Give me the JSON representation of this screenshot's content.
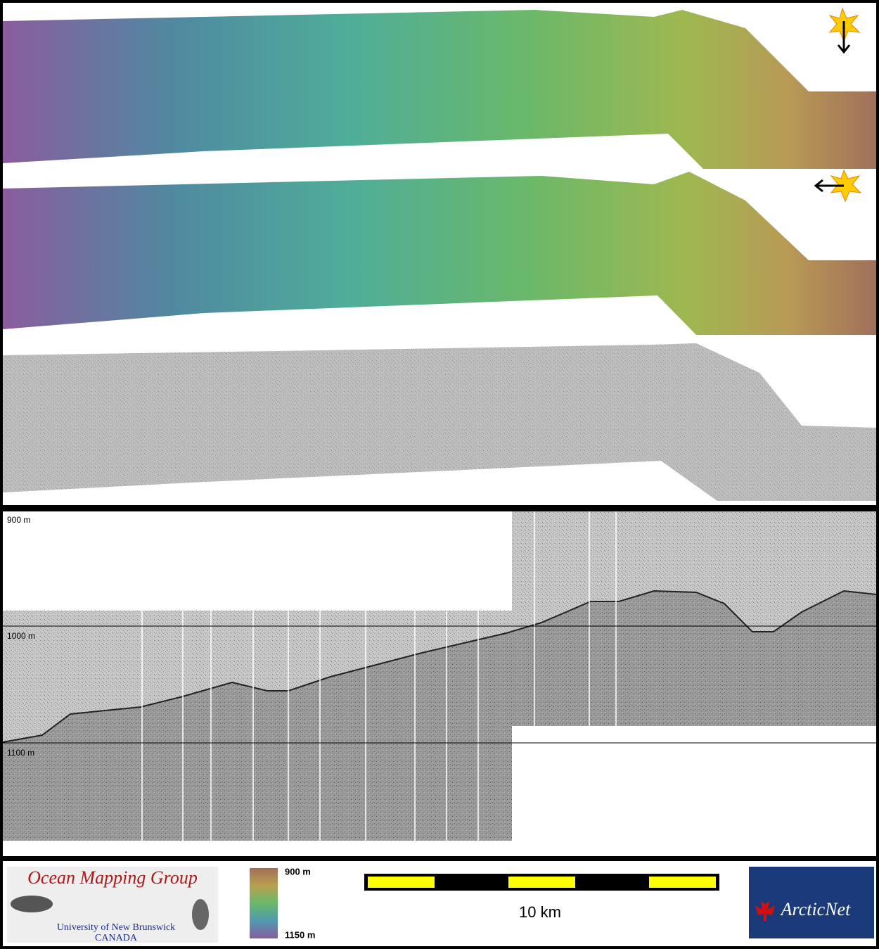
{
  "profile": {
    "depth_labels": [
      "900 m",
      "1000 m",
      "1100 m"
    ]
  },
  "footer": {
    "logo_title": "Ocean Mapping Group",
    "logo_university": "University of New Brunswick",
    "logo_country": "CANADA",
    "colorbar_top": "900 m",
    "colorbar_bottom": "1150 m",
    "scale_label": "10 km",
    "partner_logo": "ArcticNet"
  }
}
